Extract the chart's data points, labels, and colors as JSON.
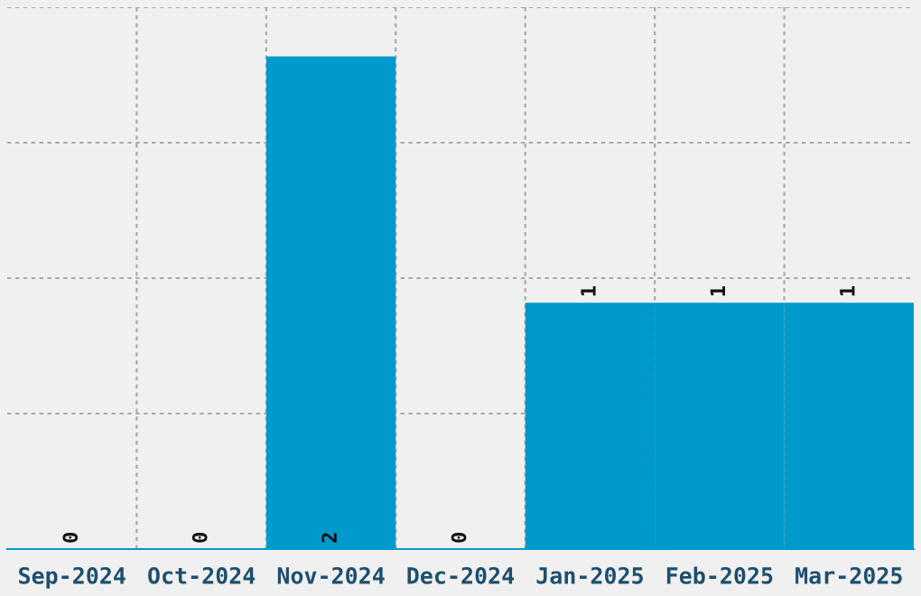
{
  "chart_data": {
    "type": "bar",
    "categories": [
      "Sep-2024",
      "Oct-2024",
      "Nov-2024",
      "Dec-2024",
      "Jan-2025",
      "Feb-2025",
      "Mar-2025"
    ],
    "values": [
      0,
      0,
      2,
      0,
      1,
      1,
      1
    ],
    "color": "#0099cc",
    "ylim": [
      0,
      2.2
    ],
    "yticks": [
      {
        "value": 0.55,
        "label": null
      },
      {
        "value": 1.1,
        "label": null
      },
      {
        "value": 1.65,
        "label": null
      },
      {
        "value": 2.2,
        "label": null
      }
    ],
    "tick_labels": "x",
    "grid": true,
    "data_labels": true
  }
}
